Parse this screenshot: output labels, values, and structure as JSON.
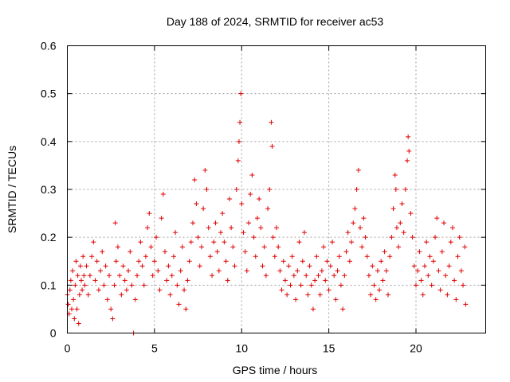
{
  "chart_data": {
    "type": "scatter",
    "title": "Day 188 of 2024, SRMTID for receiver ac53",
    "xlabel": "GPS time / hours",
    "ylabel": "SRMTID / TECUs",
    "xlim": [
      0,
      24
    ],
    "ylim": [
      0,
      0.6
    ],
    "xticks": [
      0,
      5,
      10,
      15,
      20
    ],
    "xtick_labels": [
      "0",
      "5",
      "10",
      "15",
      "20"
    ],
    "yticks": [
      0,
      0.1,
      0.2,
      0.3,
      0.4,
      0.5,
      0.6
    ],
    "ytick_labels": [
      "0",
      "0.1",
      "0.2",
      "0.3",
      "0.4",
      "0.5",
      "0.6"
    ],
    "grid": true,
    "marker": "+",
    "color": "#e00000",
    "series": [
      {
        "name": "SRMTID",
        "points": [
          [
            0.0,
            0.08
          ],
          [
            0.05,
            0.06
          ],
          [
            0.1,
            0.04
          ],
          [
            0.15,
            0.09
          ],
          [
            0.2,
            0.11
          ],
          [
            0.25,
            0.05
          ],
          [
            0.3,
            0.13
          ],
          [
            0.35,
            0.07
          ],
          [
            0.4,
            0.03
          ],
          [
            0.45,
            0.1
          ],
          [
            0.5,
            0.15
          ],
          [
            0.55,
            0.05
          ],
          [
            0.6,
            0.12
          ],
          [
            0.65,
            0.02
          ],
          [
            0.7,
            0.08
          ],
          [
            0.75,
            0.14
          ],
          [
            0.8,
            0.11
          ],
          [
            0.85,
            0.09
          ],
          [
            0.9,
            0.16
          ],
          [
            0.95,
            0.12
          ],
          [
            1.0,
            0.1
          ],
          [
            1.1,
            0.14
          ],
          [
            1.2,
            0.08
          ],
          [
            1.3,
            0.12
          ],
          [
            1.4,
            0.16
          ],
          [
            1.5,
            0.19
          ],
          [
            1.6,
            0.11
          ],
          [
            1.7,
            0.15
          ],
          [
            1.8,
            0.09
          ],
          [
            1.9,
            0.13
          ],
          [
            2.0,
            0.17
          ],
          [
            2.1,
            0.1
          ],
          [
            2.2,
            0.14
          ],
          [
            2.3,
            0.07
          ],
          [
            2.4,
            0.12
          ],
          [
            2.5,
            0.05
          ],
          [
            2.6,
            0.03
          ],
          [
            2.7,
            0.1
          ],
          [
            2.75,
            0.23
          ],
          [
            2.8,
            0.15
          ],
          [
            2.9,
            0.18
          ],
          [
            3.0,
            0.12
          ],
          [
            3.1,
            0.08
          ],
          [
            3.2,
            0.14
          ],
          [
            3.3,
            0.11
          ],
          [
            3.4,
            0.09
          ],
          [
            3.5,
            0.13
          ],
          [
            3.6,
            0.17
          ],
          [
            3.7,
            0.1
          ],
          [
            3.8,
            0.0
          ],
          [
            3.9,
            0.07
          ],
          [
            4.0,
            0.12
          ],
          [
            4.1,
            0.15
          ],
          [
            4.2,
            0.19
          ],
          [
            4.3,
            0.14
          ],
          [
            4.4,
            0.1
          ],
          [
            4.5,
            0.16
          ],
          [
            4.6,
            0.22
          ],
          [
            4.7,
            0.25
          ],
          [
            4.8,
            0.18
          ],
          [
            4.9,
            0.12
          ],
          [
            5.0,
            0.15
          ],
          [
            5.1,
            0.2
          ],
          [
            5.2,
            0.13
          ],
          [
            5.3,
            0.09
          ],
          [
            5.4,
            0.24
          ],
          [
            5.5,
            0.29
          ],
          [
            5.6,
            0.17
          ],
          [
            5.7,
            0.11
          ],
          [
            5.8,
            0.14
          ],
          [
            5.9,
            0.08
          ],
          [
            6.0,
            0.12
          ],
          [
            6.1,
            0.16
          ],
          [
            6.2,
            0.21
          ],
          [
            6.3,
            0.1
          ],
          [
            6.4,
            0.06
          ],
          [
            6.5,
            0.13
          ],
          [
            6.6,
            0.18
          ],
          [
            6.7,
            0.09
          ],
          [
            6.8,
            0.05
          ],
          [
            6.9,
            0.11
          ],
          [
            7.0,
            0.15
          ],
          [
            7.1,
            0.19
          ],
          [
            7.2,
            0.23
          ],
          [
            7.3,
            0.32
          ],
          [
            7.4,
            0.27
          ],
          [
            7.5,
            0.2
          ],
          [
            7.6,
            0.14
          ],
          [
            7.7,
            0.18
          ],
          [
            7.8,
            0.26
          ],
          [
            7.9,
            0.34
          ],
          [
            8.0,
            0.3
          ],
          [
            8.1,
            0.22
          ],
          [
            8.2,
            0.16
          ],
          [
            8.3,
            0.12
          ],
          [
            8.4,
            0.19
          ],
          [
            8.5,
            0.23
          ],
          [
            8.6,
            0.17
          ],
          [
            8.7,
            0.13
          ],
          [
            8.8,
            0.21
          ],
          [
            8.9,
            0.25
          ],
          [
            9.0,
            0.19
          ],
          [
            9.1,
            0.15
          ],
          [
            9.2,
            0.11
          ],
          [
            9.3,
            0.28
          ],
          [
            9.4,
            0.22
          ],
          [
            9.5,
            0.18
          ],
          [
            9.6,
            0.14
          ],
          [
            9.7,
            0.3
          ],
          [
            9.8,
            0.36
          ],
          [
            9.85,
            0.4
          ],
          [
            9.9,
            0.44
          ],
          [
            9.95,
            0.5
          ],
          [
            10.0,
            0.27
          ],
          [
            10.1,
            0.21
          ],
          [
            10.2,
            0.17
          ],
          [
            10.3,
            0.13
          ],
          [
            10.4,
            0.23
          ],
          [
            10.5,
            0.29
          ],
          [
            10.6,
            0.33
          ],
          [
            10.7,
            0.2
          ],
          [
            10.8,
            0.16
          ],
          [
            10.9,
            0.24
          ],
          [
            11.0,
            0.28
          ],
          [
            11.1,
            0.22
          ],
          [
            11.2,
            0.14
          ],
          [
            11.3,
            0.18
          ],
          [
            11.4,
            0.12
          ],
          [
            11.5,
            0.26
          ],
          [
            11.6,
            0.3
          ],
          [
            11.7,
            0.44
          ],
          [
            11.75,
            0.39
          ],
          [
            11.8,
            0.2
          ],
          [
            11.9,
            0.16
          ],
          [
            12.0,
            0.22
          ],
          [
            12.1,
            0.18
          ],
          [
            12.2,
            0.13
          ],
          [
            12.3,
            0.09
          ],
          [
            12.4,
            0.15
          ],
          [
            12.5,
            0.11
          ],
          [
            12.6,
            0.08
          ],
          [
            12.7,
            0.14
          ],
          [
            12.8,
            0.1
          ],
          [
            12.9,
            0.16
          ],
          [
            13.0,
            0.12
          ],
          [
            13.1,
            0.07
          ],
          [
            13.2,
            0.13
          ],
          [
            13.3,
            0.19
          ],
          [
            13.4,
            0.1
          ],
          [
            13.5,
            0.15
          ],
          [
            13.6,
            0.21
          ],
          [
            13.7,
            0.12
          ],
          [
            13.8,
            0.08
          ],
          [
            13.9,
            0.14
          ],
          [
            14.0,
            0.1
          ],
          [
            14.1,
            0.05
          ],
          [
            14.2,
            0.11
          ],
          [
            14.3,
            0.16
          ],
          [
            14.4,
            0.12
          ],
          [
            14.5,
            0.08
          ],
          [
            14.6,
            0.13
          ],
          [
            14.7,
            0.18
          ],
          [
            14.8,
            0.11
          ],
          [
            14.9,
            0.15
          ],
          [
            15.0,
            0.09
          ],
          [
            15.1,
            0.14
          ],
          [
            15.2,
            0.19
          ],
          [
            15.3,
            0.12
          ],
          [
            15.4,
            0.07
          ],
          [
            15.5,
            0.13
          ],
          [
            15.6,
            0.16
          ],
          [
            15.7,
            0.1
          ],
          [
            15.8,
            0.05
          ],
          [
            15.9,
            0.12
          ],
          [
            16.0,
            0.17
          ],
          [
            16.1,
            0.21
          ],
          [
            16.2,
            0.15
          ],
          [
            16.3,
            0.19
          ],
          [
            16.4,
            0.23
          ],
          [
            16.5,
            0.26
          ],
          [
            16.6,
            0.3
          ],
          [
            16.7,
            0.34
          ],
          [
            16.8,
            0.22
          ],
          [
            16.9,
            0.18
          ],
          [
            17.0,
            0.24
          ],
          [
            17.1,
            0.2
          ],
          [
            17.2,
            0.16
          ],
          [
            17.3,
            0.12
          ],
          [
            17.4,
            0.08
          ],
          [
            17.5,
            0.14
          ],
          [
            17.6,
            0.1
          ],
          [
            17.7,
            0.07
          ],
          [
            17.8,
            0.13
          ],
          [
            17.9,
            0.09
          ],
          [
            18.0,
            0.15
          ],
          [
            18.1,
            0.11
          ],
          [
            18.2,
            0.17
          ],
          [
            18.3,
            0.13
          ],
          [
            18.4,
            0.08
          ],
          [
            18.5,
            0.16
          ],
          [
            18.6,
            0.2
          ],
          [
            18.7,
            0.26
          ],
          [
            18.8,
            0.33
          ],
          [
            18.85,
            0.3
          ],
          [
            18.9,
            0.22
          ],
          [
            19.0,
            0.18
          ],
          [
            19.1,
            0.23
          ],
          [
            19.2,
            0.27
          ],
          [
            19.3,
            0.21
          ],
          [
            19.4,
            0.3
          ],
          [
            19.5,
            0.36
          ],
          [
            19.55,
            0.41
          ],
          [
            19.6,
            0.38
          ],
          [
            19.7,
            0.25
          ],
          [
            19.8,
            0.2
          ],
          [
            19.9,
            0.14
          ],
          [
            20.0,
            0.1
          ],
          [
            20.1,
            0.13
          ],
          [
            20.2,
            0.17
          ],
          [
            20.3,
            0.11
          ],
          [
            20.4,
            0.08
          ],
          [
            20.5,
            0.14
          ],
          [
            20.6,
            0.19
          ],
          [
            20.7,
            0.12
          ],
          [
            20.8,
            0.16
          ],
          [
            20.9,
            0.1
          ],
          [
            21.0,
            0.15
          ],
          [
            21.1,
            0.2
          ],
          [
            21.2,
            0.24
          ],
          [
            21.3,
            0.13
          ],
          [
            21.4,
            0.09
          ],
          [
            21.5,
            0.17
          ],
          [
            21.6,
            0.23
          ],
          [
            21.7,
            0.12
          ],
          [
            21.8,
            0.08
          ],
          [
            21.9,
            0.14
          ],
          [
            22.0,
            0.19
          ],
          [
            22.1,
            0.22
          ],
          [
            22.2,
            0.11
          ],
          [
            22.3,
            0.07
          ],
          [
            22.4,
            0.16
          ],
          [
            22.5,
            0.2
          ],
          [
            22.6,
            0.13
          ],
          [
            22.7,
            0.1
          ],
          [
            22.8,
            0.18
          ],
          [
            22.85,
            0.06
          ]
        ]
      }
    ]
  }
}
